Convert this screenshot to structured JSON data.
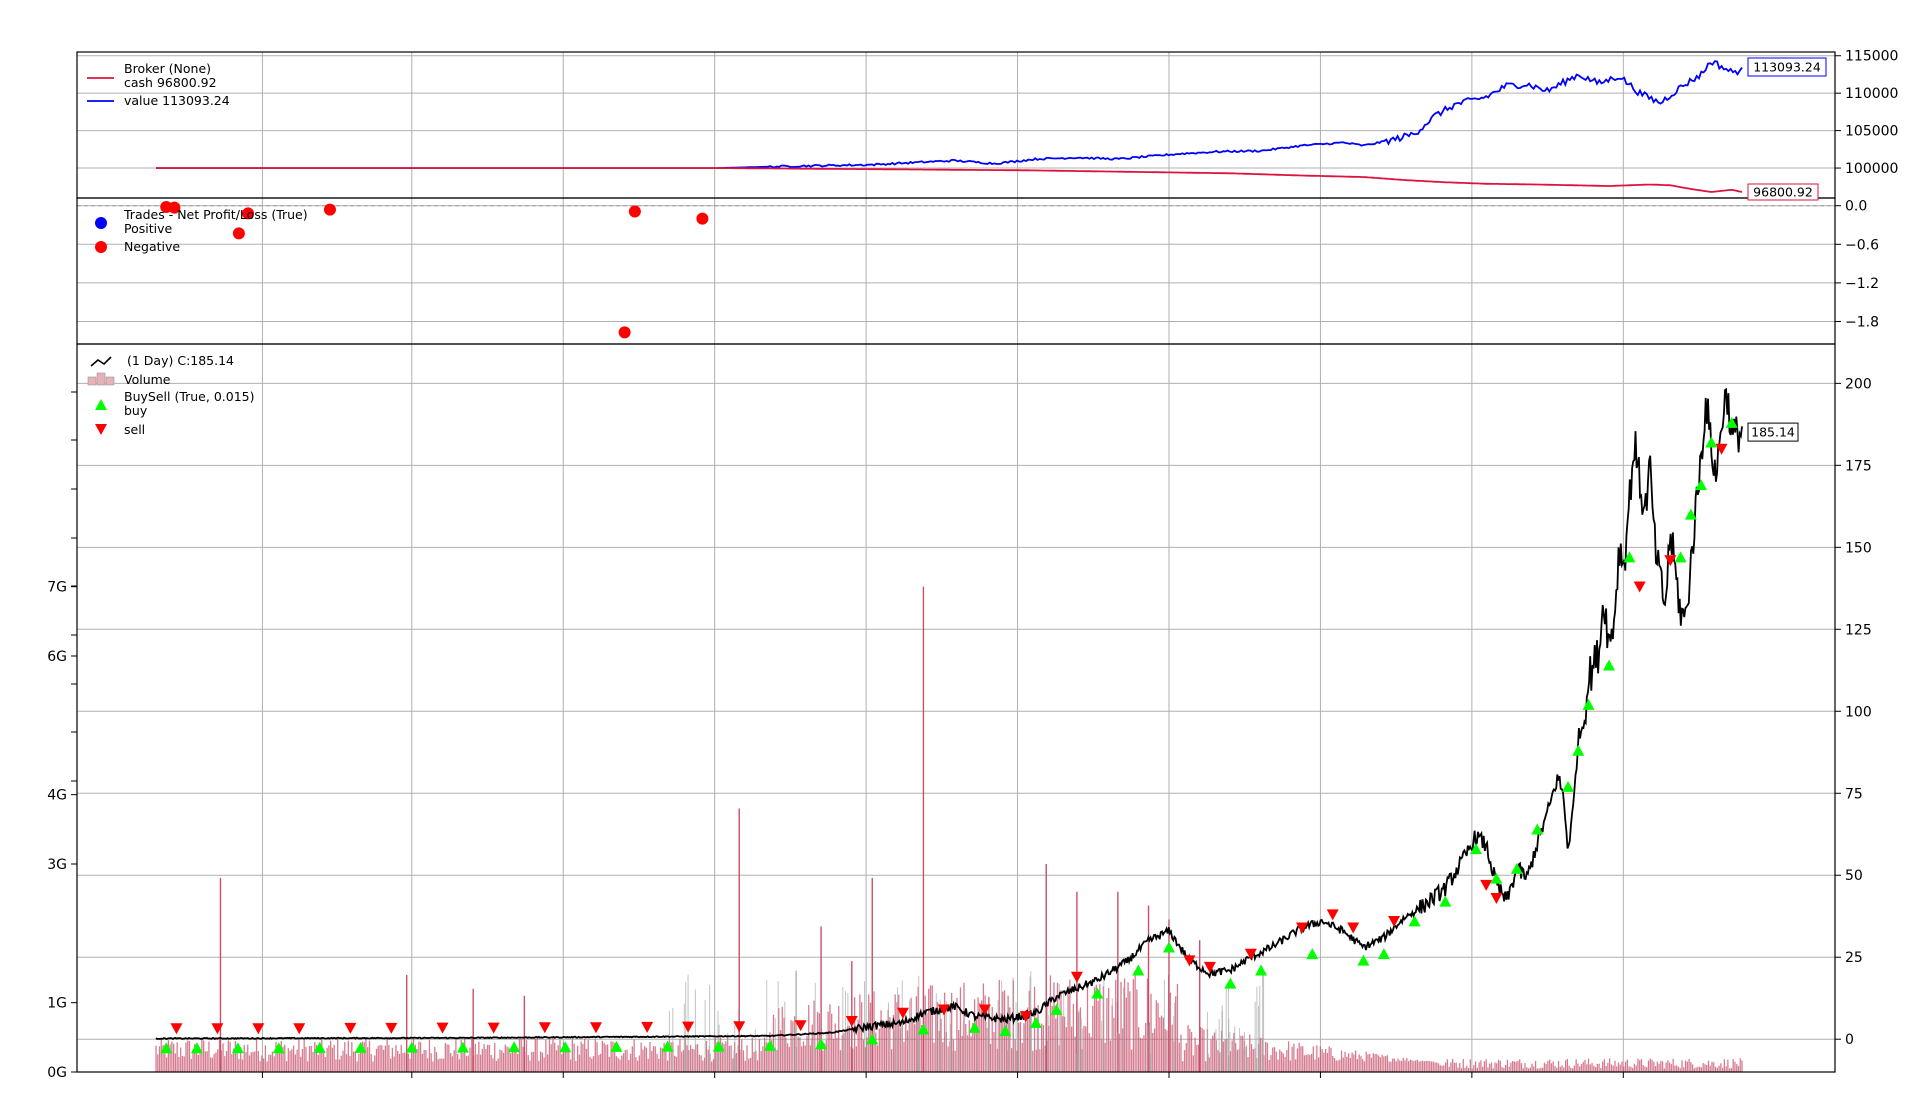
{
  "chart_data": [
    {
      "type": "line",
      "panel": "broker",
      "legend": {
        "title": "Broker (None)",
        "entries": [
          {
            "label": "cash 96800.92",
            "color": "#dc143c"
          },
          {
            "label": "value 113093.24",
            "color": "#0000ff"
          }
        ]
      },
      "ylim": [
        96000,
        115500
      ],
      "yticks": [
        "115000",
        "110000",
        "105000",
        "100000"
      ],
      "ytick_values": [
        115000,
        110000,
        105000,
        100000
      ],
      "last_labels": [
        {
          "text": "113093.24",
          "color": "#0000ff",
          "value": 113093.24
        },
        {
          "text": "96800.92",
          "color": "#dc143c",
          "value": 96800.92
        }
      ],
      "series": [
        {
          "key": "value",
          "color": "#0000ff",
          "points": [
            [
              0,
              100000
            ],
            [
              0.55,
              100000
            ],
            [
              0.62,
              100250
            ],
            [
              0.7,
              100450
            ],
            [
              0.75,
              100800
            ],
            [
              0.78,
              101000
            ],
            [
              0.82,
              100600
            ],
            [
              0.86,
              101200
            ],
            [
              0.9,
              101400
            ],
            [
              0.94,
              101200
            ],
            [
              1.0,
              101900
            ],
            [
              1.04,
              102200
            ],
            [
              1.08,
              102300
            ],
            [
              1.12,
              103000
            ],
            [
              1.16,
              103400
            ],
            [
              1.18,
              103000
            ],
            [
              1.21,
              103800
            ],
            [
              1.23,
              104600
            ],
            [
              1.25,
              107000
            ],
            [
              1.27,
              108500
            ],
            [
              1.3,
              109500
            ],
            [
              1.32,
              111000
            ],
            [
              1.34,
              111200
            ],
            [
              1.36,
              110300
            ],
            [
              1.39,
              112500
            ],
            [
              1.41,
              111300
            ],
            [
              1.43,
              112300
            ],
            [
              1.45,
              110000
            ],
            [
              1.47,
              108700
            ],
            [
              1.49,
              110800
            ],
            [
              1.51,
              112500
            ],
            [
              1.52,
              114300
            ],
            [
              1.54,
              112800
            ],
            [
              1.55,
              113093.24
            ]
          ]
        },
        {
          "key": "cash",
          "color": "#dc143c",
          "points": [
            [
              0,
              100000
            ],
            [
              0.55,
              100000
            ],
            [
              0.65,
              99900
            ],
            [
              0.75,
              99800
            ],
            [
              0.85,
              99700
            ],
            [
              0.95,
              99500
            ],
            [
              1.05,
              99300
            ],
            [
              1.12,
              99000
            ],
            [
              1.18,
              98800
            ],
            [
              1.22,
              98400
            ],
            [
              1.26,
              98100
            ],
            [
              1.3,
              97900
            ],
            [
              1.35,
              97800
            ],
            [
              1.42,
              97600
            ],
            [
              1.46,
              97800
            ],
            [
              1.48,
              97700
            ],
            [
              1.5,
              97200
            ],
            [
              1.52,
              96800
            ],
            [
              1.54,
              97100
            ],
            [
              1.55,
              96800.92
            ]
          ]
        }
      ]
    },
    {
      "type": "scatter",
      "panel": "trades",
      "legend": {
        "title": "Trades - Net Profit/Loss (True)",
        "entries": [
          {
            "label": "Positive",
            "color": "#0000ff"
          },
          {
            "label": "Negative",
            "color": "#ff0000"
          }
        ]
      },
      "ylim": [
        -2.15,
        0.12
      ],
      "yticks": [
        "0.0",
        "−0.6",
        "−1.2",
        "−1.8"
      ],
      "ytick_values": [
        0,
        -0.6,
        -1.2,
        -1.8
      ],
      "points": [
        {
          "x": 0.01,
          "y": -0.02,
          "color": "#ff0000"
        },
        {
          "x": 0.018,
          "y": -0.03,
          "color": "#ff0000"
        },
        {
          "x": 0.081,
          "y": -0.43,
          "color": "#ff0000"
        },
        {
          "x": 0.09,
          "y": -0.12,
          "color": "#ff0000"
        },
        {
          "x": 0.17,
          "y": -0.06,
          "color": "#ff0000"
        },
        {
          "x": 0.458,
          "y": -1.97,
          "color": "#ff0000"
        },
        {
          "x": 0.468,
          "y": -0.09,
          "color": "#ff0000"
        },
        {
          "x": 0.534,
          "y": -0.2,
          "color": "#ff0000"
        }
      ]
    },
    {
      "type": "line",
      "panel": "price",
      "legend": {
        "entries": [
          {
            "label": "(1 Day) C:185.14",
            "color": "#000000",
            "symbol": "line"
          },
          {
            "label": "Volume",
            "color": "#e8b0b8",
            "symbol": "bars"
          },
          {
            "label": "BuySell (True, 0.015)",
            "color": "#00ff00",
            "symbol": "none"
          },
          {
            "label": "buy",
            "color": "#00ff00",
            "symbol": "triangle-up"
          },
          {
            "label": "sell",
            "color": "#ff0000",
            "symbol": "triangle-down"
          }
        ]
      },
      "ylim": [
        -10,
        212
      ],
      "yticks": [
        "200",
        "175",
        "150",
        "125",
        "100",
        "75",
        "50",
        "25",
        "0"
      ],
      "ytick_values": [
        200,
        175,
        150,
        125,
        100,
        75,
        50,
        25,
        0
      ],
      "last_label": {
        "text": "185.14",
        "value": 185.14
      },
      "close_points": [
        [
          0,
          0.2
        ],
        [
          0.3,
          0.4
        ],
        [
          0.5,
          0.8
        ],
        [
          0.6,
          1.0
        ],
        [
          0.66,
          2.0
        ],
        [
          0.7,
          4.0
        ],
        [
          0.73,
          5.0
        ],
        [
          0.75,
          8.0
        ],
        [
          0.78,
          10.0
        ],
        [
          0.8,
          7.0
        ],
        [
          0.83,
          6.0
        ],
        [
          0.86,
          8.0
        ],
        [
          0.88,
          13.0
        ],
        [
          0.92,
          18.0
        ],
        [
          0.95,
          24.0
        ],
        [
          0.97,
          30.0
        ],
        [
          0.99,
          33.0
        ],
        [
          1.01,
          24.0
        ],
        [
          1.03,
          20.0
        ],
        [
          1.05,
          21.0
        ],
        [
          1.07,
          25.0
        ],
        [
          1.09,
          28.0
        ],
        [
          1.12,
          34.0
        ],
        [
          1.14,
          36.0
        ],
        [
          1.16,
          33.0
        ],
        [
          1.18,
          28.0
        ],
        [
          1.2,
          31.0
        ],
        [
          1.22,
          37.0
        ],
        [
          1.24,
          41.0
        ],
        [
          1.26,
          46.0
        ],
        [
          1.28,
          56.0
        ],
        [
          1.29,
          62.0
        ],
        [
          1.3,
          59.0
        ],
        [
          1.31,
          47.0
        ],
        [
          1.32,
          42.0
        ],
        [
          1.33,
          52.0
        ],
        [
          1.34,
          49.0
        ],
        [
          1.35,
          60.0
        ],
        [
          1.36,
          69.0
        ],
        [
          1.37,
          80.0
        ],
        [
          1.375,
          75.0
        ],
        [
          1.38,
          58.0
        ],
        [
          1.385,
          70.0
        ],
        [
          1.39,
          92.0
        ],
        [
          1.395,
          96.0
        ],
        [
          1.4,
          110.0
        ],
        [
          1.41,
          118.0
        ],
        [
          1.415,
          135.0
        ],
        [
          1.42,
          120.0
        ],
        [
          1.425,
          128.0
        ],
        [
          1.43,
          150.0
        ],
        [
          1.435,
          145.0
        ],
        [
          1.44,
          165.0
        ],
        [
          1.445,
          182.0
        ],
        [
          1.45,
          170.0
        ],
        [
          1.455,
          160.0
        ],
        [
          1.46,
          175.0
        ],
        [
          1.465,
          150.0
        ],
        [
          1.47,
          140.0
        ],
        [
          1.475,
          132.0
        ],
        [
          1.48,
          155.0
        ],
        [
          1.485,
          142.0
        ],
        [
          1.49,
          130.0
        ],
        [
          1.495,
          128.0
        ],
        [
          1.5,
          145.0
        ],
        [
          1.505,
          162.0
        ],
        [
          1.51,
          178.0
        ],
        [
          1.515,
          195.0
        ],
        [
          1.52,
          180.0
        ],
        [
          1.525,
          172.0
        ],
        [
          1.53,
          188.0
        ],
        [
          1.535,
          198.0
        ],
        [
          1.54,
          184.0
        ],
        [
          1.55,
          185.14
        ]
      ],
      "buy_markers": [
        [
          0.01,
          0.3
        ],
        [
          0.04,
          0.3
        ],
        [
          0.08,
          0.3
        ],
        [
          0.12,
          0.3
        ],
        [
          0.16,
          0.4
        ],
        [
          0.2,
          0.4
        ],
        [
          0.25,
          0.5
        ],
        [
          0.3,
          0.5
        ],
        [
          0.35,
          0.6
        ],
        [
          0.4,
          0.6
        ],
        [
          0.45,
          0.7
        ],
        [
          0.5,
          0.8
        ],
        [
          0.55,
          0.8
        ],
        [
          0.6,
          1.0
        ],
        [
          0.65,
          1.5
        ],
        [
          0.7,
          3.0
        ],
        [
          0.75,
          6.0
        ],
        [
          0.8,
          6.5
        ],
        [
          0.83,
          5.5
        ],
        [
          0.86,
          8.0
        ],
        [
          0.88,
          12.0
        ],
        [
          0.92,
          17.0
        ],
        [
          0.96,
          24.0
        ],
        [
          0.99,
          31.0
        ],
        [
          1.05,
          20.0
        ],
        [
          1.08,
          24.0
        ],
        [
          1.13,
          29.0
        ],
        [
          1.18,
          27.0
        ],
        [
          1.2,
          29.0
        ],
        [
          1.23,
          39.0
        ],
        [
          1.26,
          45.0
        ],
        [
          1.29,
          61.0
        ],
        [
          1.31,
          52.0
        ],
        [
          1.33,
          55.0
        ],
        [
          1.35,
          67.0
        ],
        [
          1.38,
          80.0
        ],
        [
          1.39,
          91.0
        ],
        [
          1.4,
          105.0
        ],
        [
          1.42,
          117.0
        ],
        [
          1.44,
          150.0
        ],
        [
          1.49,
          150.0
        ],
        [
          1.5,
          163.0
        ],
        [
          1.51,
          172.0
        ],
        [
          1.52,
          185.0
        ],
        [
          1.54,
          191.0
        ]
      ],
      "sell_markers": [
        [
          0.02,
          0.3
        ],
        [
          0.06,
          0.3
        ],
        [
          0.1,
          0.3
        ],
        [
          0.14,
          0.3
        ],
        [
          0.19,
          0.4
        ],
        [
          0.23,
          0.4
        ],
        [
          0.28,
          0.5
        ],
        [
          0.33,
          0.5
        ],
        [
          0.38,
          0.6
        ],
        [
          0.43,
          0.6
        ],
        [
          0.48,
          0.7
        ],
        [
          0.52,
          0.8
        ],
        [
          0.57,
          0.9
        ],
        [
          0.63,
          1.2
        ],
        [
          0.68,
          2.5
        ],
        [
          0.73,
          5.0
        ],
        [
          0.77,
          6.0
        ],
        [
          0.81,
          6.0
        ],
        [
          0.85,
          4.0
        ],
        [
          0.9,
          16.0
        ],
        [
          1.01,
          21.0
        ],
        [
          1.03,
          19.0
        ],
        [
          1.07,
          23.0
        ],
        [
          1.12,
          31.0
        ],
        [
          1.15,
          35.0
        ],
        [
          1.17,
          31.0
        ],
        [
          1.21,
          33.0
        ],
        [
          1.3,
          44.0
        ],
        [
          1.31,
          40.0
        ],
        [
          1.45,
          135.0
        ],
        [
          1.48,
          143.0
        ],
        [
          1.53,
          177.0
        ]
      ]
    },
    {
      "type": "bar",
      "panel": "volume",
      "color": "#c8506a",
      "ylim": [
        0,
        10.5
      ],
      "yticks": [
        "7G",
        "6G",
        "4G",
        "3G",
        "1G",
        "0G"
      ],
      "ytick_values": [
        7,
        6,
        4,
        3,
        1,
        0
      ],
      "spikes": [
        [
          0.063,
          2.8
        ],
        [
          0.245,
          1.4
        ],
        [
          0.31,
          1.2
        ],
        [
          0.36,
          1.1
        ],
        [
          0.57,
          3.8
        ],
        [
          0.65,
          2.1
        ],
        [
          0.7,
          2.8
        ],
        [
          0.68,
          1.6
        ],
        [
          0.75,
          7.0
        ],
        [
          0.87,
          3.0
        ],
        [
          0.9,
          2.6
        ],
        [
          0.94,
          2.6
        ],
        [
          0.97,
          2.4
        ],
        [
          0.99,
          2.2
        ],
        [
          1.02,
          1.9
        ]
      ]
    }
  ]
}
